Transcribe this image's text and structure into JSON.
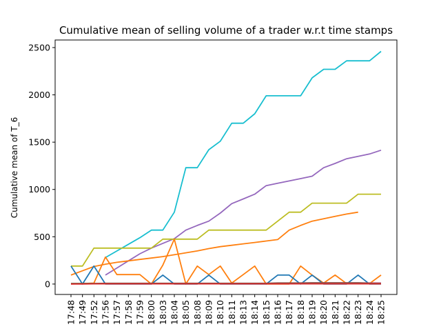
{
  "chart_data": {
    "type": "line",
    "title": "Cumulative mean of selling volume of a trader w.r.t time stamps",
    "xlabel": "",
    "ylabel": "Cumulative mean of T_6",
    "ylim": [
      -110,
      2580
    ],
    "y_ticks": [
      0,
      500,
      1000,
      1500,
      2000,
      2500
    ],
    "y_tick_labels": [
      "0",
      "500",
      "1000",
      "1500",
      "2000",
      "2500"
    ],
    "grid": false,
    "legend": "none",
    "categories": [
      "17:48",
      "17:49",
      "17:52",
      "17:56",
      "17:57",
      "17:58",
      "17:59",
      "18:00",
      "18:03",
      "18:04",
      "18:05",
      "18:08",
      "18:09",
      "18:10",
      "18:11",
      "18:13",
      "18:14",
      "18:15",
      "18:16",
      "18:17",
      "18:18",
      "18:19",
      "18:20",
      "18:21",
      "18:22",
      "18:23",
      "18:24",
      "18:25"
    ],
    "tick_labels": [
      "17:48",
      "17:49",
      "17:52",
      "17:56",
      "17:57",
      "17:58",
      "17:59",
      "18:00",
      "18:03",
      "18:04",
      "18:05",
      "18:08",
      "18:09",
      "18:10",
      "18:11",
      "18:13",
      "18:14",
      "18:15",
      "18:16",
      "18:17",
      "18:18",
      "18:19",
      "18:20",
      "18:21",
      "18:22",
      "18:23",
      "18:24",
      "18:25"
    ],
    "tick_positions": [
      0,
      1,
      2,
      3,
      4,
      5,
      6,
      7,
      8,
      9,
      10,
      11,
      12,
      13,
      14,
      15,
      16,
      17,
      18,
      19,
      20,
      21,
      22,
      23,
      24,
      25,
      26,
      27
    ],
    "series": [
      {
        "color": "#17becf",
        "x": [
          3,
          4,
          5,
          6,
          7,
          8,
          9,
          10,
          11,
          12,
          13,
          14,
          15,
          16,
          17,
          18,
          19,
          20,
          21,
          22,
          23,
          24,
          25,
          26,
          27
        ],
        "values": [
          280,
          350,
          420,
          490,
          570,
          570,
          760,
          1230,
          1230,
          1420,
          1510,
          1700,
          1700,
          1800,
          1990,
          1990,
          1990,
          1990,
          2180,
          2270,
          2270,
          2360,
          2360,
          2360,
          2460
        ]
      },
      {
        "color": "#9467bd",
        "x": [
          3,
          4,
          5,
          6,
          7,
          8,
          9,
          10,
          11,
          12,
          13,
          14,
          15,
          16,
          17,
          18,
          19,
          20,
          21,
          22,
          23,
          24,
          25,
          26,
          27
        ],
        "values": [
          95,
          170,
          245,
          320,
          380,
          430,
          480,
          570,
          620,
          665,
          750,
          850,
          900,
          950,
          1040,
          1065,
          1090,
          1115,
          1140,
          1230,
          1275,
          1325,
          1350,
          1375,
          1415
        ]
      },
      {
        "color": "#bcbd22",
        "x": [
          0,
          1,
          2,
          3,
          4,
          5,
          6,
          7,
          8,
          9,
          10,
          11,
          12,
          13,
          14,
          15,
          16,
          17,
          18,
          19,
          20,
          21,
          22,
          23,
          24,
          25,
          26,
          27
        ],
        "values": [
          190,
          190,
          380,
          380,
          380,
          380,
          380,
          380,
          475,
          475,
          475,
          475,
          570,
          570,
          570,
          570,
          570,
          570,
          665,
          760,
          760,
          855,
          855,
          855,
          855,
          950,
          950,
          950
        ]
      },
      {
        "color": "#ff7f0e",
        "x": [
          0,
          1,
          2,
          3,
          4,
          5,
          6,
          7,
          8,
          9,
          10,
          11,
          12,
          13,
          14,
          15,
          16,
          17,
          18,
          19,
          20,
          21,
          22,
          23,
          24,
          25
        ],
        "values": [
          95,
          140,
          185,
          210,
          230,
          245,
          260,
          275,
          290,
          310,
          330,
          350,
          375,
          395,
          410,
          425,
          440,
          455,
          470,
          570,
          620,
          665,
          690,
          715,
          740,
          760
        ]
      },
      {
        "color": "#ff7f0e",
        "x": [
          0,
          1,
          2,
          3,
          4,
          5,
          6,
          7,
          8,
          9,
          10,
          11,
          12,
          13,
          14,
          15,
          16,
          17,
          18,
          19,
          20,
          21,
          22,
          23,
          24,
          25,
          26,
          27
        ],
        "values": [
          0,
          5,
          10,
          285,
          100,
          100,
          100,
          0,
          200,
          475,
          0,
          190,
          100,
          190,
          10,
          100,
          190,
          0,
          0,
          0,
          190,
          95,
          10,
          95,
          5,
          5,
          5,
          95
        ]
      },
      {
        "color": "#1f77b4",
        "x": [
          0,
          1,
          2,
          3,
          4,
          5,
          6,
          7,
          8,
          9,
          10,
          11,
          12,
          13,
          14,
          15,
          16,
          17,
          18,
          19,
          20,
          21,
          22,
          23,
          24,
          25,
          26,
          27
        ],
        "values": [
          190,
          0,
          190,
          0,
          0,
          0,
          0,
          0,
          95,
          0,
          0,
          0,
          95,
          0,
          0,
          0,
          0,
          0,
          95,
          95,
          0,
          95,
          0,
          0,
          0,
          95,
          0,
          0
        ]
      },
      {
        "color": "#2ca02c",
        "x": [
          0,
          1,
          2,
          3,
          4,
          5,
          6,
          7,
          8,
          9,
          10,
          11,
          12,
          13,
          14,
          15,
          16,
          17,
          18,
          19,
          20,
          21,
          22,
          23,
          24,
          25,
          26,
          27
        ],
        "values": [
          5,
          5,
          5,
          5,
          5,
          5,
          5,
          5,
          5,
          5,
          5,
          5,
          5,
          5,
          5,
          5,
          5,
          5,
          5,
          5,
          10,
          10,
          10,
          10,
          10,
          10,
          10,
          10
        ]
      },
      {
        "color": "#e377c2",
        "x": [
          0,
          1,
          2,
          3,
          4,
          5,
          6,
          7,
          8,
          9,
          10,
          11,
          12,
          13,
          14,
          15,
          16,
          17,
          18,
          19,
          20,
          21,
          22,
          23,
          24,
          25,
          26,
          27
        ],
        "values": [
          3,
          3,
          3,
          3,
          3,
          3,
          3,
          3,
          3,
          3,
          3,
          3,
          3,
          3,
          3,
          3,
          3,
          3,
          8,
          8,
          12,
          12,
          12,
          12,
          12,
          12,
          12,
          12
        ]
      },
      {
        "color": "#7f7f7f",
        "x": [
          0,
          1,
          2,
          3,
          4,
          5,
          6,
          7,
          8,
          9,
          10,
          11,
          12,
          13,
          14,
          15,
          16,
          17,
          18,
          19,
          20,
          21,
          22,
          23,
          24,
          25,
          26,
          27
        ],
        "values": [
          2,
          2,
          2,
          2,
          2,
          2,
          2,
          2,
          2,
          2,
          2,
          2,
          2,
          2,
          2,
          2,
          2,
          2,
          2,
          2,
          5,
          5,
          5,
          5,
          5,
          5,
          5,
          5
        ]
      },
      {
        "color": "#8c564b",
        "x": [
          0,
          1,
          2,
          3,
          4,
          5,
          6,
          7,
          8,
          9,
          10,
          11,
          12,
          13,
          14,
          15,
          16,
          17,
          18,
          19,
          20,
          21,
          22,
          23,
          24,
          25,
          26,
          27
        ],
        "values": [
          5,
          5,
          5,
          8,
          8,
          8,
          8,
          8,
          8,
          8,
          8,
          8,
          8,
          8,
          8,
          8,
          8,
          8,
          12,
          12,
          12,
          14,
          14,
          14,
          14,
          14,
          10,
          8
        ]
      },
      {
        "color": "#d62728",
        "x": [
          0,
          1,
          2,
          3,
          4,
          5,
          6,
          7,
          8,
          9,
          10,
          11,
          12,
          13,
          14,
          15,
          16,
          17,
          18,
          19,
          20,
          21,
          22,
          23,
          24,
          25,
          26,
          27
        ],
        "values": [
          0,
          0,
          2,
          2,
          2,
          2,
          2,
          2,
          2,
          2,
          2,
          2,
          2,
          2,
          2,
          2,
          2,
          2,
          2,
          2,
          2,
          2,
          2,
          2,
          2,
          2,
          2,
          2
        ]
      }
    ]
  }
}
